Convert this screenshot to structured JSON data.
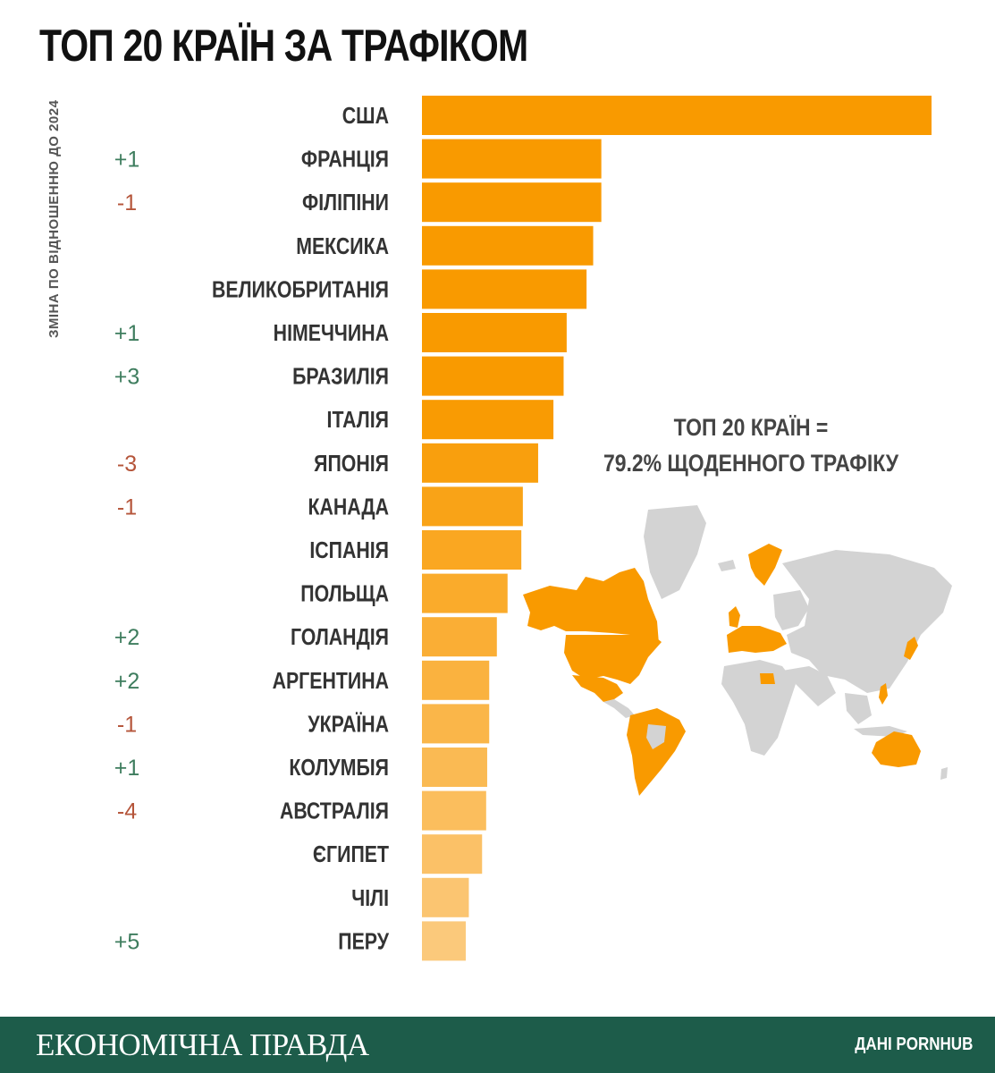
{
  "title": "ТОП 20 КРАЇН ЗА ТРАФІКОМ",
  "side_label": "ЗМІНА ПО ВІДНОШЕННЮ ДО 2024",
  "summary": {
    "line1": "ТОП 20 КРАЇН =",
    "line2": "79.2% ЩОДЕННОГО ТРАФІКУ"
  },
  "footer": {
    "brand": "ЕКОНОМІЧНА ПРАВДА",
    "source": "ДАНІ PORNHUB"
  },
  "colors": {
    "bar_top": "#f99a00",
    "bar_bottom": "#fbc97b",
    "positive": "#3e7d5e",
    "negative": "#b5553a",
    "map_land": "#d3d3d3",
    "map_highlight": "#f99a00",
    "footer_bg": "#1d5c4a"
  },
  "chart_data": {
    "type": "bar",
    "orientation": "horizontal",
    "categories": [
      "США",
      "ФРАНЦІЯ",
      "ФІЛІПІНИ",
      "МЕКСИКА",
      "ВЕЛИКОБРИТАНІЯ",
      "НІМЕЧЧИНА",
      "БРАЗИЛІЯ",
      "ІТАЛІЯ",
      "ЯПОНІЯ",
      "КАНАДА",
      "ІСПАНІЯ",
      "ПОЛЬЩА",
      "ГОЛАНДІЯ",
      "АРГЕНТИНА",
      "УКРАЇНА",
      "КОЛУМБІЯ",
      "АВСТРАЛІЯ",
      "ЄГИПЕТ",
      "ЧІЛІ",
      "ПЕРУ"
    ],
    "values": [
      100,
      35.2,
      35.2,
      33.6,
      32.3,
      28.4,
      27.8,
      25.8,
      22.8,
      19.8,
      19.5,
      16.8,
      14.7,
      13.2,
      13.2,
      12.8,
      12.6,
      11.8,
      9.2,
      8.6
    ],
    "changes": [
      "",
      "+1",
      "-1",
      "",
      "",
      "+1",
      "+3",
      "",
      "-3",
      "-1",
      "",
      "",
      "+2",
      "+2",
      "-1",
      "+1",
      "-4",
      "",
      "",
      "+5"
    ],
    "highlighted_countries": [
      "США",
      "ФРАНЦІЯ",
      "ФІЛІПІНИ",
      "МЕКСИКА",
      "ВЕЛИКОБРИТАНІЯ",
      "НІМЕЧЧИНА",
      "БРАЗИЛІЯ",
      "ІТАЛІЯ",
      "ЯПОНІЯ",
      "КАНАДА",
      "ІСПАНІЯ",
      "ПОЛЬЩА",
      "ГОЛАНДІЯ",
      "АРГЕНТИНА",
      "УКРАЇНА",
      "КОЛУМБІЯ",
      "АВСТРАЛІЯ",
      "ЄГИПЕТ",
      "ЧІЛІ",
      "ПЕРУ"
    ],
    "xlim": [
      0,
      100
    ],
    "grid": false,
    "legend": "none"
  }
}
